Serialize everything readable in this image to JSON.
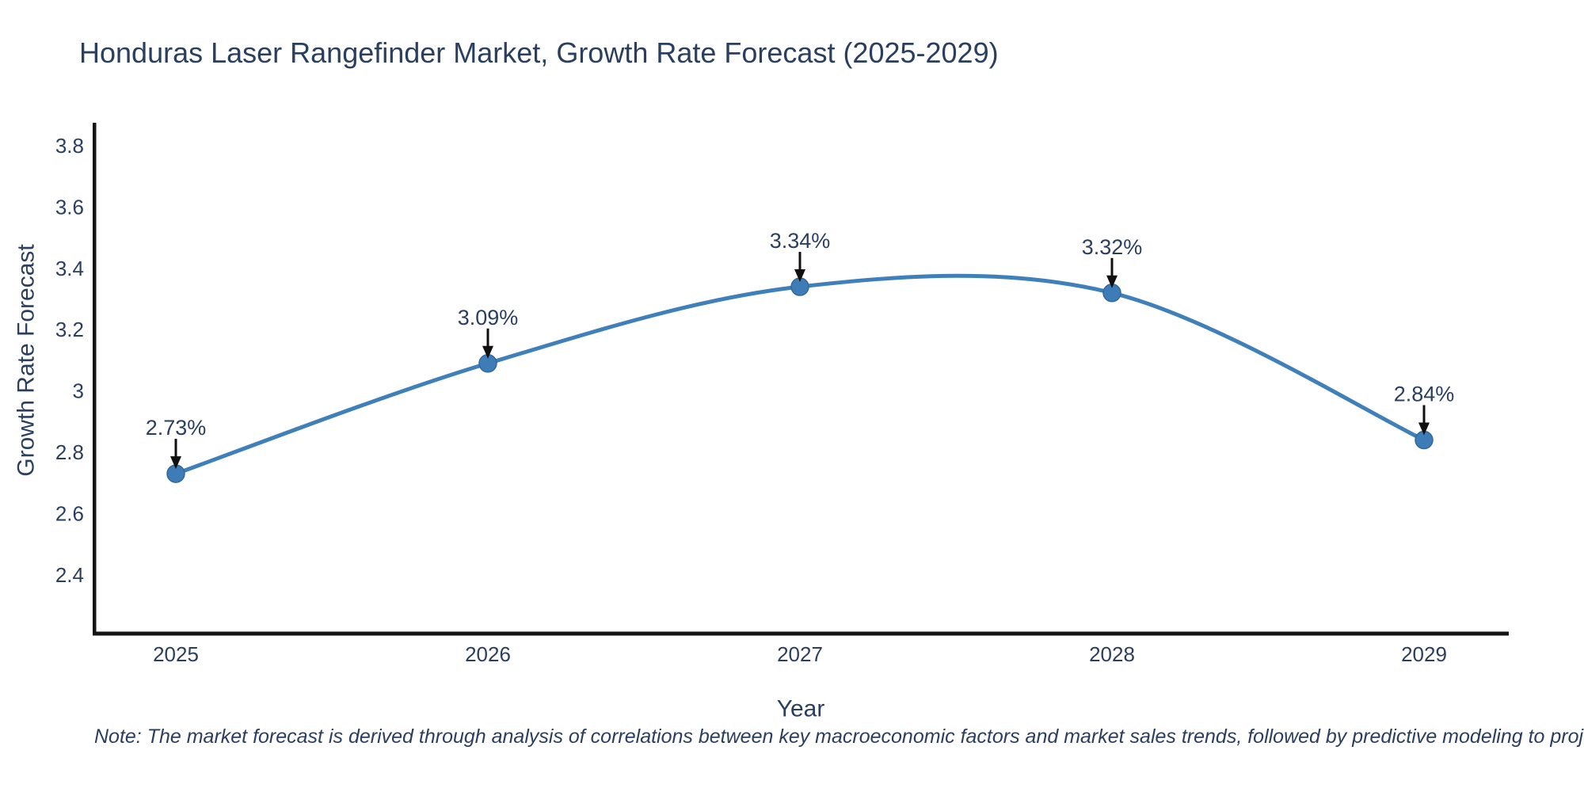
{
  "chart": {
    "colors": {
      "line": "#3f7fba",
      "marker": "#3d7cb6",
      "marker_edge": "#34689a",
      "text": "#2a3f5f",
      "axis": "#141414",
      "arrow": "#101010",
      "background": "#ffffff"
    }
  },
  "chart_data": {
    "type": "line",
    "title": "Honduras Laser Rangefinder Market, Growth Rate Forecast (2025-2029)",
    "xlabel": "Year",
    "ylabel": "Growth Rate Forecast",
    "x": [
      2025,
      2026,
      2027,
      2028,
      2029
    ],
    "y": [
      2.73,
      3.09,
      3.34,
      3.32,
      2.84
    ],
    "point_labels": [
      "2.73%",
      "3.09%",
      "3.34%",
      "3.32%",
      "2.84%"
    ],
    "x_tick_labels": [
      "2025",
      "2026",
      "2027",
      "2028",
      "2029"
    ],
    "y_tick_values": [
      3.8,
      3.6,
      3.4,
      3.2,
      3.0,
      2.8,
      2.6,
      2.4
    ],
    "y_tick_labels": [
      "3.8",
      "3.6",
      "3.4",
      "3.2",
      "3",
      "2.8",
      "2.6",
      "2.4"
    ],
    "ylim": [
      2.2,
      3.85
    ],
    "line_shape": "spline",
    "markers": true,
    "grid": false,
    "legend": false,
    "note": "Note: The market forecast is derived through analysis of correlations between key macroeconomic factors and market sales trends, followed by predictive modeling to project future sales"
  }
}
